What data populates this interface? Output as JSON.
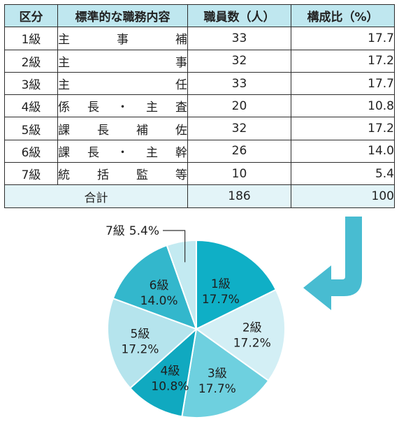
{
  "table": {
    "headers": [
      "区分",
      "標準的な職務内容",
      "職員数（人）",
      "構成比（%）"
    ],
    "rows": [
      {
        "grade": "1級",
        "duty": [
          "主",
          "事",
          "補"
        ],
        "staff": "33",
        "ratio": "17.7"
      },
      {
        "grade": "2級",
        "duty": [
          "主",
          "事"
        ],
        "staff": "32",
        "ratio": "17.2"
      },
      {
        "grade": "3級",
        "duty": [
          "主",
          "任"
        ],
        "staff": "33",
        "ratio": "17.7"
      },
      {
        "grade": "4級",
        "duty": [
          "係",
          "長",
          "・",
          "主",
          "査"
        ],
        "staff": "20",
        "ratio": "10.8"
      },
      {
        "grade": "5級",
        "duty": [
          "課",
          "長",
          "補",
          "佐"
        ],
        "staff": "32",
        "ratio": "17.2"
      },
      {
        "grade": "6級",
        "duty": [
          "課",
          "長",
          "・",
          "主",
          "幹"
        ],
        "staff": "26",
        "ratio": "14.0"
      },
      {
        "grade": "7級",
        "duty": [
          "統",
          "括",
          "監",
          "等"
        ],
        "staff": "10",
        "ratio": "5.4"
      }
    ],
    "total": {
      "label": "合計",
      "staff": "186",
      "ratio": "100"
    }
  },
  "colors": {
    "header_bg": "#bfe7ef",
    "total_bg": "#e3f4f8",
    "arrow": "#48bcd1",
    "slices": [
      "#0fafc6",
      "#d3eff5",
      "#6ed0df",
      "#10a9c0",
      "#b5e4ed",
      "#33b7cc",
      "#c3eaf1"
    ]
  },
  "chart_data": {
    "type": "pie",
    "categories": [
      "1級",
      "2級",
      "3級",
      "4級",
      "5級",
      "6級",
      "7級"
    ],
    "values": [
      17.7,
      17.2,
      17.7,
      10.8,
      17.2,
      14.0,
      5.4
    ],
    "value_labels": [
      "17.7%",
      "17.2%",
      "17.7%",
      "10.8%",
      "17.2%",
      "14.0%",
      "5.4%"
    ],
    "start": "12 o'clock",
    "direction": "clockwise",
    "title": ""
  }
}
